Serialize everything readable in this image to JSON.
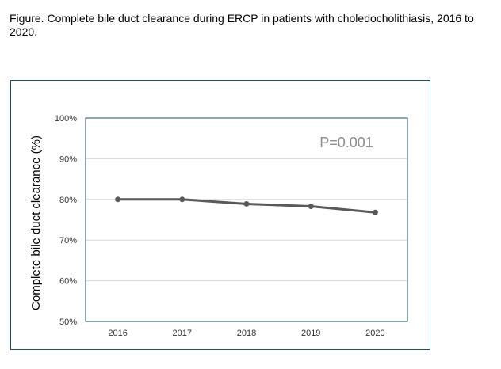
{
  "figure": {
    "caption": "Figure. Complete bile duct clearance during ERCP in patients with choledocholithiasis, 2016 to 2020."
  },
  "chart_data": {
    "type": "line",
    "title": "",
    "xlabel": "",
    "ylabel": "Complete bile duct clearance (%)",
    "categories": [
      "2016",
      "2017",
      "2018",
      "2019",
      "2020"
    ],
    "series": [
      {
        "values": [
          80.0,
          80.0,
          78.9,
          78.3,
          76.8
        ]
      }
    ],
    "ylim": [
      50,
      100
    ],
    "yticks": [
      "50%",
      "60%",
      "70%",
      "80%",
      "90%",
      "100%"
    ],
    "annotation": "P=0.001",
    "grid": true,
    "legend": "none",
    "colors": {
      "line": "#595959",
      "grid": "#d9d9d9",
      "frame": "#1f4e5f",
      "annotation": "#8c8c8c"
    }
  }
}
